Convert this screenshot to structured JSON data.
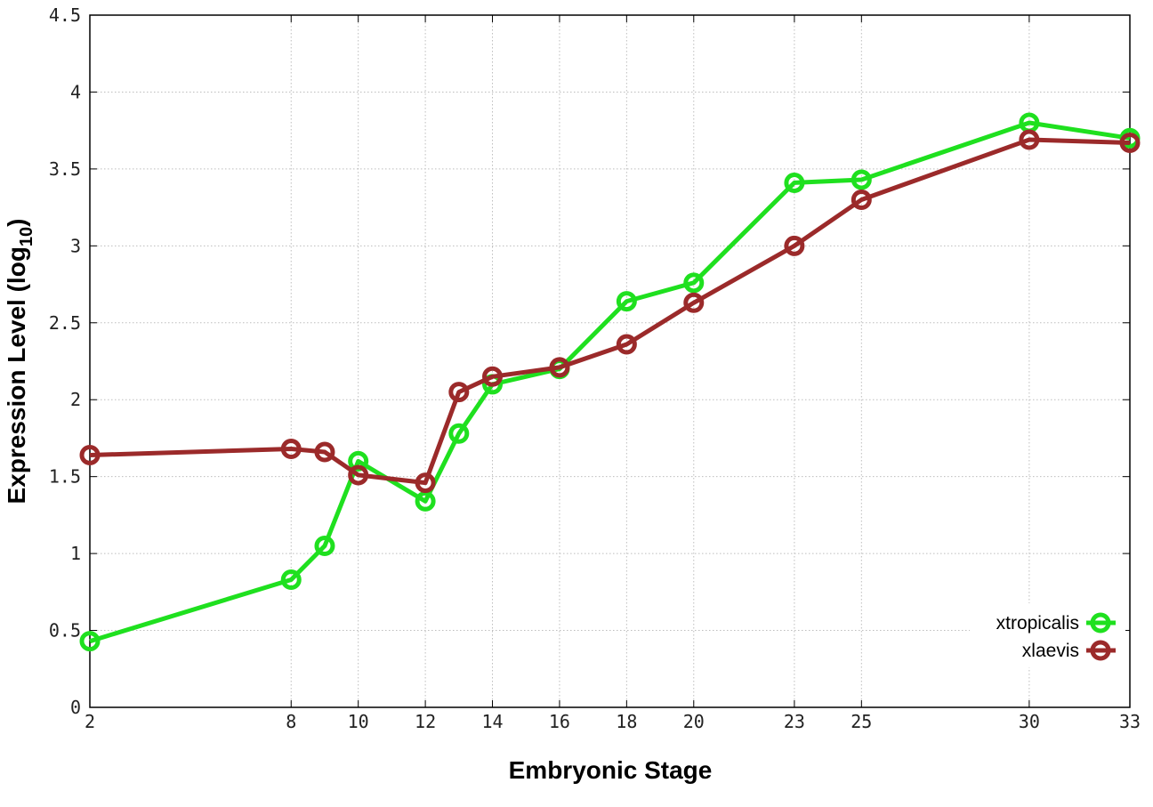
{
  "chart_data": {
    "type": "line",
    "title": "",
    "xlabel": "Embryonic Stage",
    "ylabel": "Expression Level (log",
    "ylabel_subscript": "10",
    "ylabel_close": ")",
    "ylim": [
      0,
      4.5
    ],
    "yticks": [
      0,
      0.5,
      1,
      1.5,
      2,
      2.5,
      3,
      3.5,
      4,
      4.5
    ],
    "ytick_labels": [
      "0",
      "0.5",
      "1",
      "1.5",
      "2",
      "2.5",
      "3",
      "3.5",
      "4",
      "4.5"
    ],
    "x": [
      2,
      8,
      9,
      10,
      12,
      13,
      14,
      16,
      18,
      20,
      23,
      25,
      30,
      33
    ],
    "xticks": [
      2,
      8,
      10,
      12,
      14,
      16,
      18,
      20,
      23,
      25,
      30,
      33
    ],
    "xtick_labels": [
      "2",
      "8",
      "10",
      "12",
      "14",
      "16",
      "18",
      "20",
      "23",
      "25",
      "30",
      "33"
    ],
    "grid": true,
    "legend_position": "bottom-right",
    "series": [
      {
        "name": "xtropicalis",
        "color": "#1fe01f",
        "values": [
          0.43,
          0.83,
          1.05,
          1.6,
          1.34,
          1.78,
          2.1,
          2.2,
          2.64,
          2.76,
          3.41,
          3.43,
          3.8,
          3.7
        ]
      },
      {
        "name": "xlaevis",
        "color": "#9b2a2a",
        "values": [
          1.64,
          1.68,
          1.66,
          1.51,
          1.46,
          2.05,
          2.15,
          2.21,
          2.36,
          2.63,
          3.0,
          3.3,
          3.69,
          3.67
        ]
      }
    ]
  }
}
